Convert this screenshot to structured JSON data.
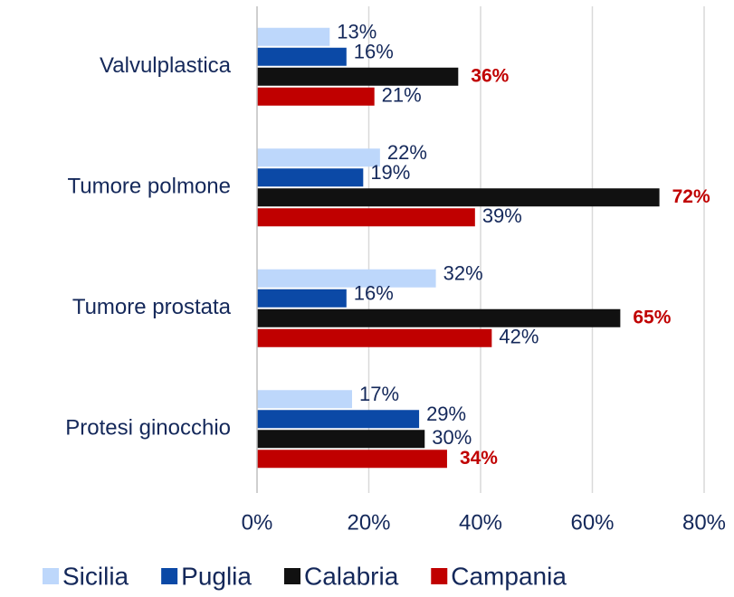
{
  "chart_data": {
    "type": "hbar",
    "categories": [
      "Valvulplastica",
      "Tumore polmone",
      "Tumore prostata",
      "Protesi ginocchio"
    ],
    "series": [
      {
        "name": "Sicilia",
        "color": "#bdd7fb",
        "values": [
          13,
          22,
          32,
          17
        ],
        "value_labels": [
          "13%",
          "22%",
          "32%",
          "17%"
        ]
      },
      {
        "name": "Puglia",
        "color": "#0b49a6",
        "values": [
          16,
          19,
          16,
          29
        ],
        "value_labels": [
          "16%",
          "19%",
          "16%",
          "29%"
        ]
      },
      {
        "name": "Calabria",
        "color": "#111111",
        "values": [
          36,
          72,
          65,
          30
        ],
        "value_labels": [
          "36%",
          "72%",
          "65%",
          "30%"
        ]
      },
      {
        "name": "Campania",
        "color": "#c00000",
        "values": [
          21,
          39,
          42,
          34
        ],
        "value_labels": [
          "21%",
          "39%",
          "42%",
          "34%"
        ]
      }
    ],
    "xlim": [
      0,
      80
    ],
    "xticks": [
      {
        "value": 0,
        "label": "0%"
      },
      {
        "value": 20,
        "label": "20%"
      },
      {
        "value": 40,
        "label": "40%"
      },
      {
        "value": 60,
        "label": "60%"
      },
      {
        "value": 80,
        "label": "80%"
      }
    ],
    "grid": true,
    "legend": "bottom"
  }
}
